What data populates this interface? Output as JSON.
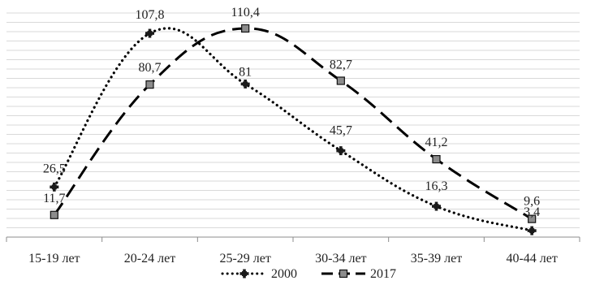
{
  "chart_data": {
    "type": "line",
    "title": "",
    "xlabel": "",
    "ylabel": "",
    "categories": [
      "15-19 лет",
      "20-24 лет",
      "25-29 лет",
      "30-34 лет",
      "35-39 лет",
      "40-44 лет"
    ],
    "ylim": [
      0,
      120
    ],
    "grid": true,
    "legend_position": "bottom",
    "series": [
      {
        "name": "2000",
        "values": [
          26.5,
          107.8,
          81,
          45.7,
          16.3,
          3.4
        ],
        "labels": [
          "26,5",
          "107,8",
          "81",
          "45,7",
          "16,3",
          "3,4"
        ],
        "style": "dotted",
        "marker": "cross",
        "color": "#000000"
      },
      {
        "name": "2017",
        "values": [
          11.7,
          80.7,
          110.4,
          82.7,
          41.2,
          9.6
        ],
        "labels": [
          "11,7",
          "80,7",
          "110,4",
          "82,7",
          "41,2",
          "9,6"
        ],
        "style": "dashed",
        "marker": "square",
        "color": "#000000"
      }
    ]
  }
}
